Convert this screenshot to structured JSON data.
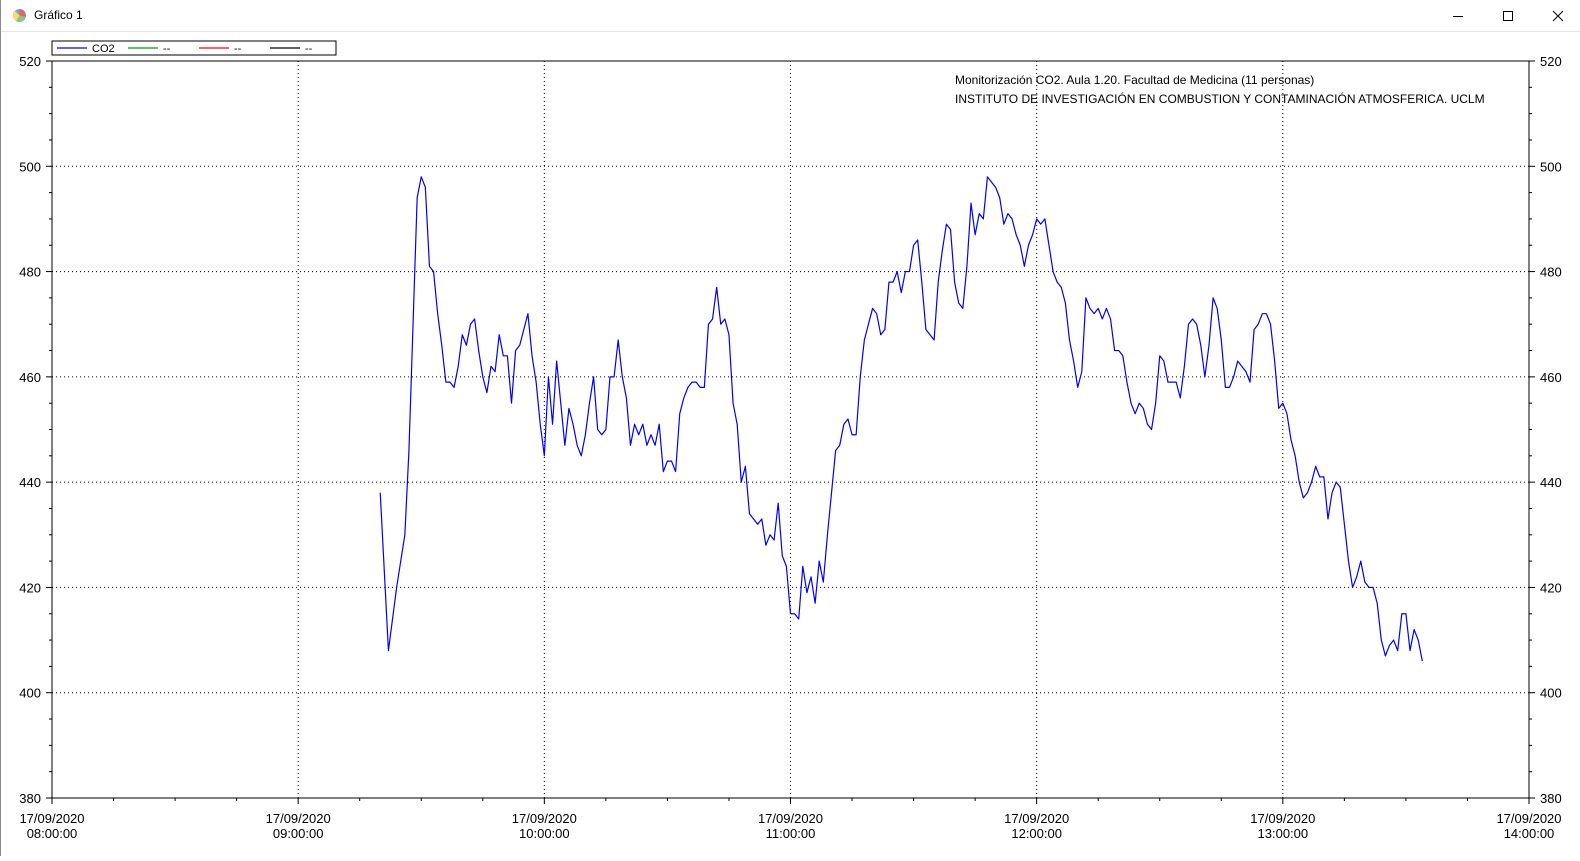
{
  "window": {
    "title": "Gráfico 1",
    "icon": "app-chart-icon"
  },
  "titlebar_buttons": [
    {
      "name": "minimize",
      "icon": "minimize-icon"
    },
    {
      "name": "maximize",
      "icon": "maximize-icon"
    },
    {
      "name": "close",
      "icon": "close-icon"
    }
  ],
  "chart_data": {
    "type": "line",
    "annotation": [
      "Monitorización CO2. Aula 1.20. Facultad de Medicina (11 personas)",
      "INSTITUTO DE INVESTIGACIÓN EN COMBUSTION Y CONTAMINACIÓN ATMOSFERICA. UCLM"
    ],
    "legend": {
      "placement": "top-left",
      "entries": [
        {
          "label": "CO2",
          "color": "#0000ff"
        },
        {
          "label": "--",
          "color": "#00a000"
        },
        {
          "label": "--",
          "color": "#ff0000"
        },
        {
          "label": "--",
          "color": "#000000"
        }
      ]
    },
    "ylim": [
      380,
      520
    ],
    "yticks": [
      380,
      400,
      420,
      440,
      460,
      480,
      500,
      520
    ],
    "xlim_minutes": [
      0,
      360
    ],
    "xticks": [
      {
        "minutes": 0,
        "date": "17/09/2020",
        "time": "08:00:00"
      },
      {
        "minutes": 60,
        "date": "17/09/2020",
        "time": "09:00:00"
      },
      {
        "minutes": 120,
        "date": "17/09/2020",
        "time": "10:00:00"
      },
      {
        "minutes": 180,
        "date": "17/09/2020",
        "time": "11:00:00"
      },
      {
        "minutes": 240,
        "date": "17/09/2020",
        "time": "12:00:00"
      },
      {
        "minutes": 300,
        "date": "17/09/2020",
        "time": "13:00:00"
      },
      {
        "minutes": 360,
        "date": "17/09/2020",
        "time": "14:00:00"
      }
    ],
    "grid": true,
    "series": [
      {
        "name": "CO2",
        "color": "#0000ff",
        "points": [
          [
            80,
            438
          ],
          [
            82,
            408
          ],
          [
            84,
            420
          ],
          [
            86,
            430
          ],
          [
            87,
            446
          ],
          [
            88,
            470
          ],
          [
            89,
            494
          ],
          [
            90,
            498
          ],
          [
            91,
            496
          ],
          [
            92,
            481
          ],
          [
            93,
            480
          ],
          [
            94,
            472
          ],
          [
            95,
            466
          ],
          [
            96,
            459
          ],
          [
            97,
            459
          ],
          [
            98,
            458
          ],
          [
            99,
            462
          ],
          [
            100,
            468
          ],
          [
            101,
            466
          ],
          [
            102,
            470
          ],
          [
            103,
            471
          ],
          [
            104,
            465
          ],
          [
            105,
            460
          ],
          [
            106,
            457
          ],
          [
            107,
            462
          ],
          [
            108,
            461
          ],
          [
            109,
            468
          ],
          [
            110,
            464
          ],
          [
            111,
            464
          ],
          [
            112,
            455
          ],
          [
            113,
            465
          ],
          [
            114,
            466
          ],
          [
            115,
            469
          ],
          [
            116,
            472
          ],
          [
            117,
            464
          ],
          [
            118,
            459
          ],
          [
            119,
            451
          ],
          [
            120,
            445
          ],
          [
            121,
            460
          ],
          [
            122,
            451
          ],
          [
            123,
            463
          ],
          [
            124,
            455
          ],
          [
            125,
            447
          ],
          [
            126,
            454
          ],
          [
            127,
            451
          ],
          [
            128,
            447
          ],
          [
            129,
            445
          ],
          [
            130,
            449
          ],
          [
            131,
            455
          ],
          [
            132,
            460
          ],
          [
            133,
            450
          ],
          [
            134,
            449
          ],
          [
            135,
            450
          ],
          [
            136,
            460
          ],
          [
            137,
            460
          ],
          [
            138,
            467
          ],
          [
            139,
            460
          ],
          [
            140,
            456
          ],
          [
            141,
            447
          ],
          [
            142,
            451
          ],
          [
            143,
            449
          ],
          [
            144,
            451
          ],
          [
            145,
            447
          ],
          [
            146,
            449
          ],
          [
            147,
            447
          ],
          [
            148,
            451
          ],
          [
            149,
            442
          ],
          [
            150,
            444
          ],
          [
            151,
            444
          ],
          [
            152,
            442
          ],
          [
            153,
            453
          ],
          [
            154,
            456
          ],
          [
            155,
            458
          ],
          [
            156,
            459
          ],
          [
            157,
            459
          ],
          [
            158,
            458
          ],
          [
            159,
            458
          ],
          [
            160,
            470
          ],
          [
            161,
            471
          ],
          [
            162,
            477
          ],
          [
            163,
            470
          ],
          [
            164,
            471
          ],
          [
            165,
            468
          ],
          [
            166,
            455
          ],
          [
            167,
            451
          ],
          [
            168,
            440
          ],
          [
            169,
            443
          ],
          [
            170,
            434
          ],
          [
            171,
            433
          ],
          [
            172,
            432
          ],
          [
            173,
            433
          ],
          [
            174,
            428
          ],
          [
            175,
            430
          ],
          [
            176,
            429
          ],
          [
            177,
            436
          ],
          [
            178,
            426
          ],
          [
            179,
            424
          ],
          [
            180,
            415
          ],
          [
            181,
            415
          ],
          [
            182,
            414
          ],
          [
            183,
            424
          ],
          [
            184,
            419
          ],
          [
            185,
            422
          ],
          [
            186,
            417
          ],
          [
            187,
            425
          ],
          [
            188,
            421
          ],
          [
            189,
            430
          ],
          [
            190,
            438
          ],
          [
            191,
            446
          ],
          [
            192,
            447
          ],
          [
            193,
            451
          ],
          [
            194,
            452
          ],
          [
            195,
            449
          ],
          [
            196,
            449
          ],
          [
            197,
            460
          ],
          [
            198,
            467
          ],
          [
            199,
            470
          ],
          [
            200,
            473
          ],
          [
            201,
            472
          ],
          [
            202,
            468
          ],
          [
            203,
            469
          ],
          [
            204,
            478
          ],
          [
            205,
            478
          ],
          [
            206,
            480
          ],
          [
            207,
            476
          ],
          [
            208,
            480
          ],
          [
            209,
            480
          ],
          [
            210,
            485
          ],
          [
            211,
            486
          ],
          [
            212,
            478
          ],
          [
            213,
            469
          ],
          [
            214,
            468
          ],
          [
            215,
            467
          ],
          [
            216,
            478
          ],
          [
            217,
            484
          ],
          [
            218,
            489
          ],
          [
            219,
            488
          ],
          [
            220,
            478
          ],
          [
            221,
            474
          ],
          [
            222,
            473
          ],
          [
            223,
            481
          ],
          [
            224,
            493
          ],
          [
            225,
            487
          ],
          [
            226,
            491
          ],
          [
            227,
            490
          ],
          [
            228,
            498
          ],
          [
            229,
            497
          ],
          [
            230,
            496
          ],
          [
            231,
            494
          ],
          [
            232,
            489
          ],
          [
            233,
            491
          ],
          [
            234,
            490
          ],
          [
            235,
            487
          ],
          [
            236,
            485
          ],
          [
            237,
            481
          ],
          [
            238,
            485
          ],
          [
            239,
            487
          ],
          [
            240,
            490
          ],
          [
            241,
            489
          ],
          [
            242,
            490
          ],
          [
            243,
            485
          ],
          [
            244,
            480
          ],
          [
            245,
            478
          ],
          [
            246,
            477
          ],
          [
            247,
            474
          ],
          [
            248,
            467
          ],
          [
            249,
            463
          ],
          [
            250,
            458
          ],
          [
            251,
            461
          ],
          [
            252,
            475
          ],
          [
            253,
            473
          ],
          [
            254,
            472
          ],
          [
            255,
            473
          ],
          [
            256,
            471
          ],
          [
            257,
            473
          ],
          [
            258,
            471
          ],
          [
            259,
            465
          ],
          [
            260,
            465
          ],
          [
            261,
            464
          ],
          [
            262,
            459
          ],
          [
            263,
            455
          ],
          [
            264,
            453
          ],
          [
            265,
            455
          ],
          [
            266,
            454
          ],
          [
            267,
            451
          ],
          [
            268,
            450
          ],
          [
            269,
            455
          ],
          [
            270,
            464
          ],
          [
            271,
            463
          ],
          [
            272,
            459
          ],
          [
            273,
            459
          ],
          [
            274,
            459
          ],
          [
            275,
            456
          ],
          [
            276,
            462
          ],
          [
            277,
            470
          ],
          [
            278,
            471
          ],
          [
            279,
            470
          ],
          [
            280,
            466
          ],
          [
            281,
            460
          ],
          [
            282,
            466
          ],
          [
            283,
            475
          ],
          [
            284,
            473
          ],
          [
            285,
            467
          ],
          [
            286,
            458
          ],
          [
            287,
            458
          ],
          [
            288,
            460
          ],
          [
            289,
            463
          ],
          [
            290,
            462
          ],
          [
            291,
            461
          ],
          [
            292,
            459
          ],
          [
            293,
            469
          ],
          [
            294,
            470
          ],
          [
            295,
            472
          ],
          [
            296,
            472
          ],
          [
            297,
            470
          ],
          [
            298,
            463
          ],
          [
            299,
            454
          ],
          [
            300,
            455
          ],
          [
            301,
            453
          ],
          [
            302,
            448
          ],
          [
            303,
            445
          ],
          [
            304,
            440
          ],
          [
            305,
            437
          ],
          [
            306,
            438
          ],
          [
            307,
            440
          ],
          [
            308,
            443
          ],
          [
            309,
            441
          ],
          [
            310,
            441
          ],
          [
            311,
            433
          ],
          [
            312,
            438
          ],
          [
            313,
            440
          ],
          [
            314,
            439
          ],
          [
            315,
            432
          ],
          [
            316,
            425
          ],
          [
            317,
            420
          ],
          [
            318,
            422
          ],
          [
            319,
            425
          ],
          [
            320,
            421
          ],
          [
            321,
            420
          ],
          [
            322,
            420
          ],
          [
            323,
            417
          ],
          [
            324,
            410
          ],
          [
            325,
            407
          ],
          [
            326,
            409
          ],
          [
            327,
            410
          ],
          [
            328,
            408
          ],
          [
            329,
            415
          ],
          [
            330,
            415
          ],
          [
            331,
            408
          ],
          [
            332,
            412
          ],
          [
            333,
            410
          ],
          [
            334,
            406
          ]
        ]
      }
    ]
  }
}
